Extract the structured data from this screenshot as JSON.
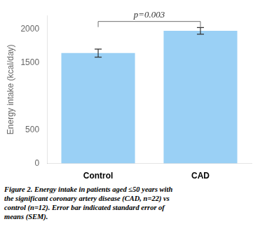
{
  "chart_data": {
    "type": "bar",
    "categories": [
      "Control",
      "CAD"
    ],
    "values": [
      1640,
      1970
    ],
    "errors": [
      60,
      50
    ],
    "ylabel": "Energy intake (kcal/day)",
    "ylim": [
      0,
      2200
    ],
    "yticks": [
      0,
      500,
      1500,
      2000
    ],
    "grid": false,
    "annotations": [
      {
        "text": "p=0.003",
        "from": "Control",
        "to": "CAD",
        "y": 2110
      }
    ],
    "caption": [
      "Figure 2. Energy intake in patients aged ≤50 years with",
      "the significant coronary artery disease (CAD, n=22) vs",
      "control (n=12). Error bar indicated standard error of",
      "means (SEM)."
    ]
  }
}
